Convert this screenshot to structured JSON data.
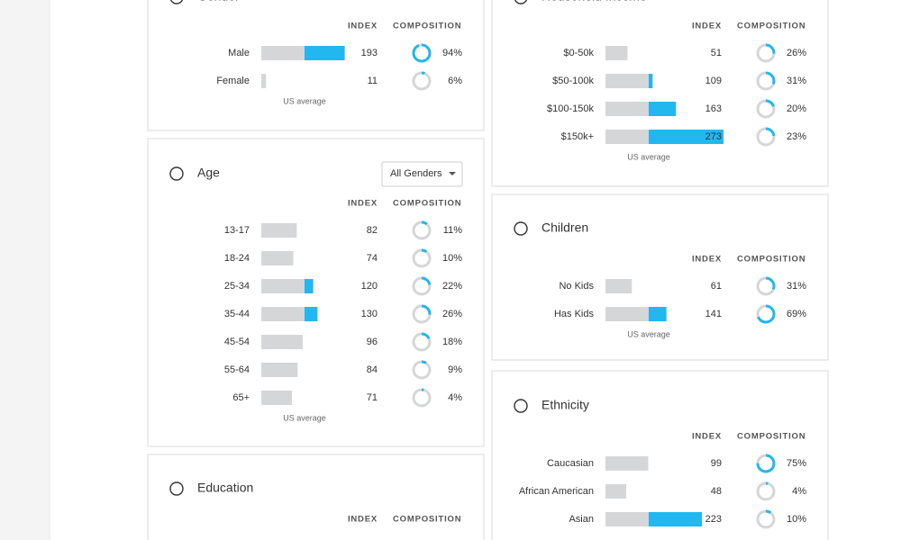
{
  "cards": [
    {
      "title": "Gender",
      "index_header": "INDEX",
      "composition_header": "COMPOSITION",
      "footnote": "US average",
      "rows": [
        {
          "label": "Male",
          "index": 193,
          "composition": {
            "value": 94,
            "label": "94%"
          }
        },
        {
          "label": "Female",
          "index": 11,
          "composition": {
            "value": 6,
            "label": "6%"
          }
        }
      ]
    },
    {
      "title": "Age",
      "dropdown": "All Genders",
      "index_header": "INDEX",
      "composition_header": "COMPOSITION",
      "footnote": "US average",
      "rows": [
        {
          "label": "13-17",
          "index": 82,
          "composition": {
            "value": 11,
            "label": "11%"
          }
        },
        {
          "label": "18-24",
          "index": 74,
          "composition": {
            "value": 10,
            "label": "10%"
          }
        },
        {
          "label": "25-34",
          "index": 120,
          "composition": {
            "value": 22,
            "label": "22%"
          }
        },
        {
          "label": "35-44",
          "index": 130,
          "composition": {
            "value": 26,
            "label": "26%"
          }
        },
        {
          "label": "45-54",
          "index": 96,
          "composition": {
            "value": 18,
            "label": "18%"
          }
        },
        {
          "label": "55-64",
          "index": 84,
          "composition": {
            "value": 9,
            "label": "9%"
          }
        },
        {
          "label": "65+",
          "index": 71,
          "composition": {
            "value": 4,
            "label": "4%"
          }
        }
      ]
    },
    {
      "title": "Education",
      "index_header": "INDEX",
      "composition_header": "COMPOSITION"
    },
    {
      "title": "Household Income",
      "index_header": "INDEX",
      "composition_header": "COMPOSITION",
      "footnote": "US average",
      "rows": [
        {
          "label": "$0-50k",
          "index": 51,
          "composition": {
            "value": 26,
            "label": "26%"
          }
        },
        {
          "label": "$50-100k",
          "index": 109,
          "composition": {
            "value": 31,
            "label": "31%"
          }
        },
        {
          "label": "$100-150k",
          "index": 163,
          "composition": {
            "value": 20,
            "label": "20%"
          }
        },
        {
          "label": "$150k+",
          "index": 273,
          "composition": {
            "value": 23,
            "label": "23%"
          }
        }
      ]
    },
    {
      "title": "Children",
      "index_header": "INDEX",
      "composition_header": "COMPOSITION",
      "footnote": "US average",
      "rows": [
        {
          "label": "No Kids",
          "index": 61,
          "composition": {
            "value": 31,
            "label": "31%"
          }
        },
        {
          "label": "Has Kids",
          "index": 141,
          "composition": {
            "value": 69,
            "label": "69%"
          }
        }
      ]
    },
    {
      "title": "Ethnicity",
      "index_header": "INDEX",
      "composition_header": "COMPOSITION",
      "rows": [
        {
          "label": "Caucasian",
          "index": 99,
          "composition": {
            "value": 75,
            "label": "75%"
          }
        },
        {
          "label": "African American",
          "index": 48,
          "composition": {
            "value": 4,
            "label": "4%"
          }
        },
        {
          "label": "Asian",
          "index": 223,
          "composition": {
            "value": 10,
            "label": "10%"
          }
        }
      ]
    }
  ]
}
